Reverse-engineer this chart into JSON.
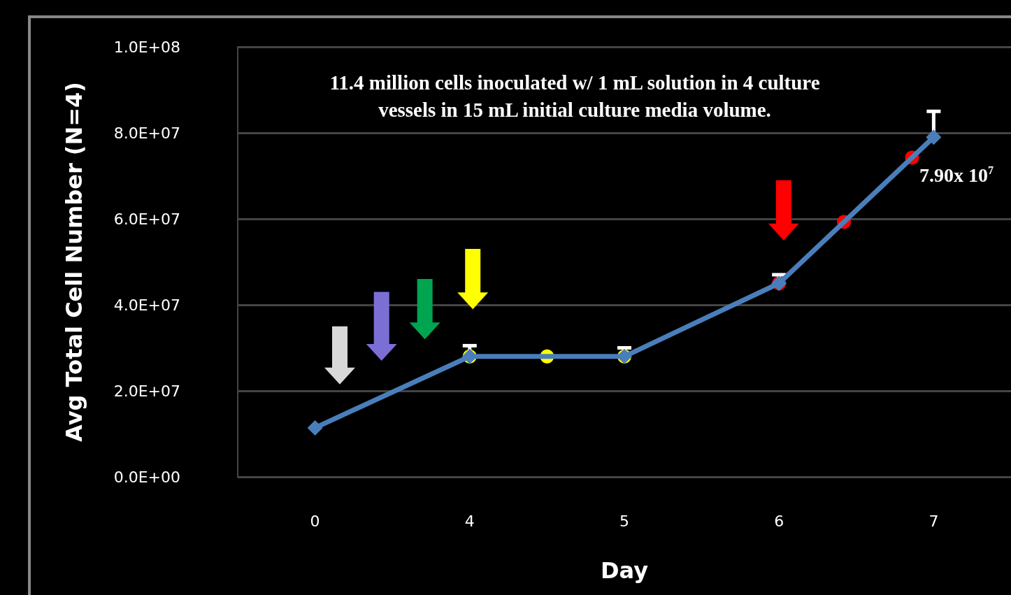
{
  "chart_data": {
    "type": "line",
    "xlabel": "Day",
    "ylabel": "Avg Total Cell Number (N=4)",
    "categories": [
      "0",
      "4",
      "5",
      "6",
      "7"
    ],
    "series": [
      {
        "color": "#4a7ebb",
        "values": [
          11400000,
          28000000,
          28000000,
          45000000,
          79000000
        ],
        "errors": [
          null,
          [
            28000000,
            30500000
          ],
          [
            28000000,
            30000000
          ],
          [
            45000000,
            47000000
          ],
          [
            79000000,
            85000000
          ]
        ]
      }
    ],
    "ylim": [
      0,
      100000000
    ],
    "yticks": [
      {
        "value": 0,
        "label": "0.0E+00"
      },
      {
        "value": 20000000,
        "label": "2.0E+07"
      },
      {
        "value": 40000000,
        "label": "4.0E+07"
      },
      {
        "value": 60000000,
        "label": "6.0E+07"
      },
      {
        "value": 80000000,
        "label": "8.0E+07"
      },
      {
        "value": 100000000,
        "label": "1.0E+08"
      }
    ],
    "grid": "y",
    "marker": "diamond",
    "line_style": "solid",
    "annotations": [
      "11.4 million cells inoculated w/ 1 mL solution in 4 culture\nvessels in 15 mL initial culture media volume.",
      {
        "text": "7.90x 10$^{7}$",
        "x": "7",
        "y": 79000000
      }
    ]
  }
}
